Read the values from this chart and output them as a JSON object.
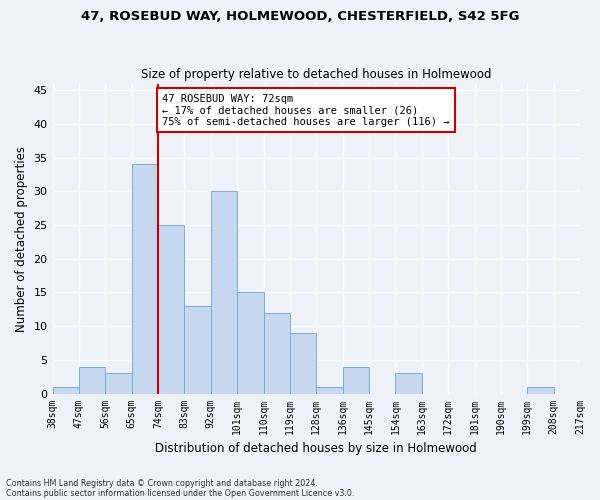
{
  "title1": "47, ROSEBUD WAY, HOLMEWOOD, CHESTERFIELD, S42 5FG",
  "title2": "Size of property relative to detached houses in Holmewood",
  "xlabel": "Distribution of detached houses by size in Holmewood",
  "ylabel": "Number of detached properties",
  "bin_labels": [
    "38sqm",
    "47sqm",
    "56sqm",
    "65sqm",
    "74sqm",
    "83sqm",
    "92sqm",
    "101sqm",
    "110sqm",
    "119sqm",
    "128sqm",
    "136sqm",
    "145sqm",
    "154sqm",
    "163sqm",
    "172sqm",
    "181sqm",
    "190sqm",
    "199sqm",
    "208sqm",
    "217sqm"
  ],
  "values": [
    1,
    4,
    3,
    34,
    25,
    13,
    30,
    15,
    12,
    9,
    1,
    4,
    0,
    3,
    0,
    0,
    0,
    0,
    1,
    0
  ],
  "bar_color": "#c5d8f0",
  "bar_edge_color": "#7aadd4",
  "property_line_color": "#cc0000",
  "property_line_bin_edge": 4,
  "annotation_text": "47 ROSEBUD WAY: 72sqm\n← 17% of detached houses are smaller (26)\n75% of semi-detached houses are larger (116) →",
  "annotation_box_color": "#ffffff",
  "annotation_box_edge": "#cc0000",
  "ylim": [
    0,
    46
  ],
  "yticks": [
    0,
    5,
    10,
    15,
    20,
    25,
    30,
    35,
    40,
    45
  ],
  "footer1": "Contains HM Land Registry data © Crown copyright and database right 2024.",
  "footer2": "Contains public sector information licensed under the Open Government Licence v3.0.",
  "bg_color": "#eef2f8",
  "plot_bg_color": "#eef2f8"
}
